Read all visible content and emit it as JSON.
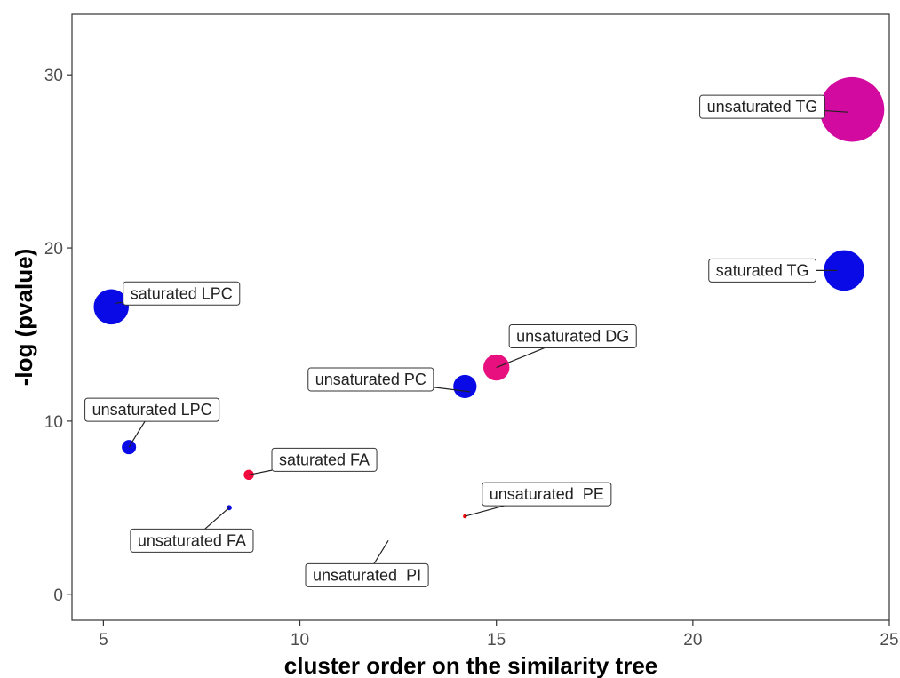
{
  "chart_data": {
    "type": "scatter",
    "title": "",
    "xlabel": "cluster order on the similarity tree",
    "ylabel": "-log (pvalue)",
    "xlim": [
      4.2,
      25
    ],
    "ylim": [
      -1.5,
      33.5
    ],
    "x_ticks": [
      5,
      10,
      15,
      20,
      25
    ],
    "y_ticks": [
      0,
      10,
      20,
      30
    ],
    "grid": false,
    "legend": "none",
    "points": [
      {
        "label": "unsaturated TG",
        "x": 24.05,
        "y": 28.0,
        "color": "#d30aa0"
      },
      {
        "label": "saturated TG",
        "x": 23.85,
        "y": 18.7,
        "color": "#0a0ae6"
      },
      {
        "label": "saturated LPC",
        "x": 5.2,
        "y": 16.6,
        "color": "#0a0ae6"
      },
      {
        "label": "unsaturated DG",
        "x": 15.0,
        "y": 13.1,
        "color": "#e8107e"
      },
      {
        "label": "unsaturated PC",
        "x": 14.2,
        "y": 12.0,
        "color": "#0a0ae6"
      },
      {
        "label": "unsaturated LPC",
        "x": 5.65,
        "y": 8.5,
        "color": "#0a0ae6"
      },
      {
        "label": "saturated FA",
        "x": 8.7,
        "y": 6.9,
        "color": "#f2093e"
      },
      {
        "label": "unsaturated FA",
        "x": 8.2,
        "y": 5.0,
        "color": "#0a0ae6"
      },
      {
        "label": "unsaturated  PE",
        "x": 14.2,
        "y": 4.5,
        "color": "#f20a0a"
      },
      {
        "label": "unsaturated  PI",
        "x": 12.25,
        "y": 3.1,
        "color": "#0a0ae6"
      }
    ]
  }
}
